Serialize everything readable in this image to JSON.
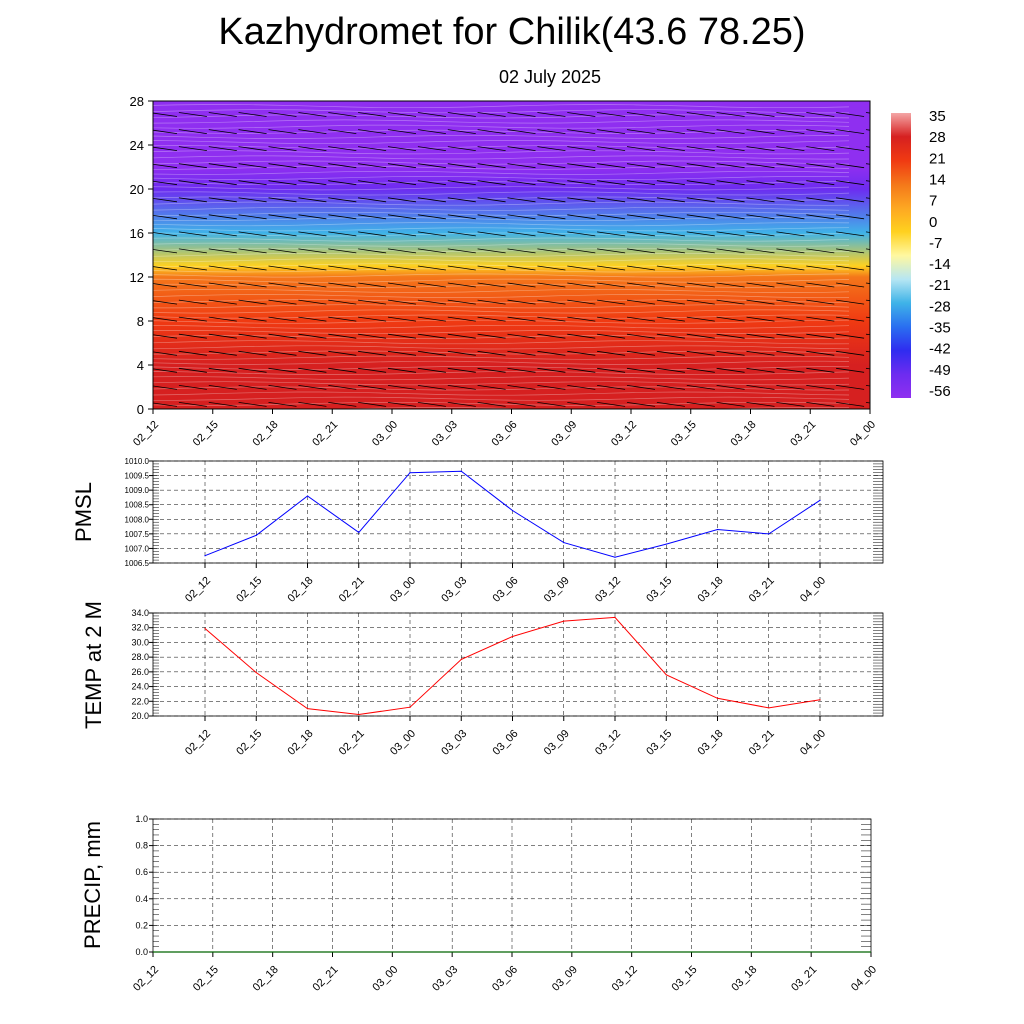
{
  "title": "Kazhydromet for Chilik(43.6 78.25)",
  "subtitle": "02 July 2025",
  "colors": {
    "pmsl_line": "#0000ff",
    "temp_line": "#ff0000",
    "precip_line": "#006400",
    "grid": "#000000"
  },
  "chart_data": [
    {
      "type": "heatmap",
      "ylim": [
        0,
        28
      ],
      "yticks": [
        "0",
        "4",
        "8",
        "12",
        "16",
        "20",
        "24",
        "28"
      ],
      "xticks": [
        "02_12",
        "02_15",
        "02_18",
        "02_21",
        "03_00",
        "03_03",
        "03_06",
        "03_09",
        "03_12",
        "03_15",
        "03_18",
        "03_21",
        "04_00"
      ],
      "colorbar_labels": [
        "35",
        "28",
        "21",
        "14",
        "7",
        "0",
        "-7",
        "-14",
        "-21",
        "-28",
        "-35",
        "-42",
        "-49",
        "-56"
      ],
      "layers": [
        {
          "level": 0,
          "value": 30
        },
        {
          "level": 4,
          "value": 27
        },
        {
          "level": 8,
          "value": 21
        },
        {
          "level": 12,
          "value": 10
        },
        {
          "level": 13,
          "value": -5
        },
        {
          "level": 16,
          "value": -30
        },
        {
          "level": 20,
          "value": -50
        },
        {
          "level": 22,
          "value": -58
        },
        {
          "level": 28,
          "value": -60
        }
      ],
      "colormap": [
        "#f4a6a6",
        "#d62020",
        "#f03a12",
        "#f4771a",
        "#fda722",
        "#ffd11f",
        "#fff8a0",
        "#b6e6f3",
        "#3fb3e8",
        "#2a6ff0",
        "#2f2cf0",
        "#6d2cf0",
        "#8f2ff0"
      ]
    },
    {
      "type": "line",
      "ylabel": "PMSL",
      "ylim": [
        1006.5,
        1010.0
      ],
      "yticks": [
        "1006.5",
        "1007.0",
        "1007.5",
        "1008.0",
        "1008.5",
        "1009.0",
        "1009.5",
        "1010.0"
      ],
      "x": [
        "02_12",
        "02_15",
        "02_18",
        "02_21",
        "03_00",
        "03_03",
        "03_06",
        "03_09",
        "03_12",
        "03_15",
        "03_18",
        "03_21",
        "04_00"
      ],
      "values": [
        1006.75,
        1007.45,
        1008.8,
        1007.55,
        1009.6,
        1009.65,
        1008.3,
        1007.2,
        1006.7,
        1007.15,
        1007.65,
        1007.5,
        1008.65
      ]
    },
    {
      "type": "line",
      "ylabel": "TEMP at 2 M",
      "ylim": [
        20.0,
        34.0
      ],
      "yticks": [
        "20.0",
        "22.0",
        "24.0",
        "26.0",
        "28.0",
        "30.0",
        "32.0",
        "34.0"
      ],
      "x": [
        "02_12",
        "02_15",
        "02_18",
        "02_21",
        "03_00",
        "03_03",
        "03_06",
        "03_09",
        "03_12",
        "03_15",
        "03_18",
        "03_21",
        "04_00"
      ],
      "values": [
        31.9,
        25.9,
        21.0,
        20.2,
        21.2,
        27.7,
        30.8,
        32.9,
        33.4,
        25.6,
        22.4,
        21.1,
        22.2
      ]
    },
    {
      "type": "line",
      "ylabel": "PRECIP, mm",
      "ylim": [
        0.0,
        1.0
      ],
      "yticks": [
        "0.0",
        "0.2",
        "0.4",
        "0.6",
        "0.8",
        "1.0"
      ],
      "x": [
        "02_12",
        "02_15",
        "02_18",
        "02_21",
        "03_00",
        "03_03",
        "03_06",
        "03_09",
        "03_12",
        "03_15",
        "03_18",
        "03_21",
        "04_00"
      ],
      "values": [
        0,
        0,
        0,
        0,
        0,
        0,
        0,
        0,
        0,
        0,
        0,
        0,
        0
      ]
    }
  ]
}
